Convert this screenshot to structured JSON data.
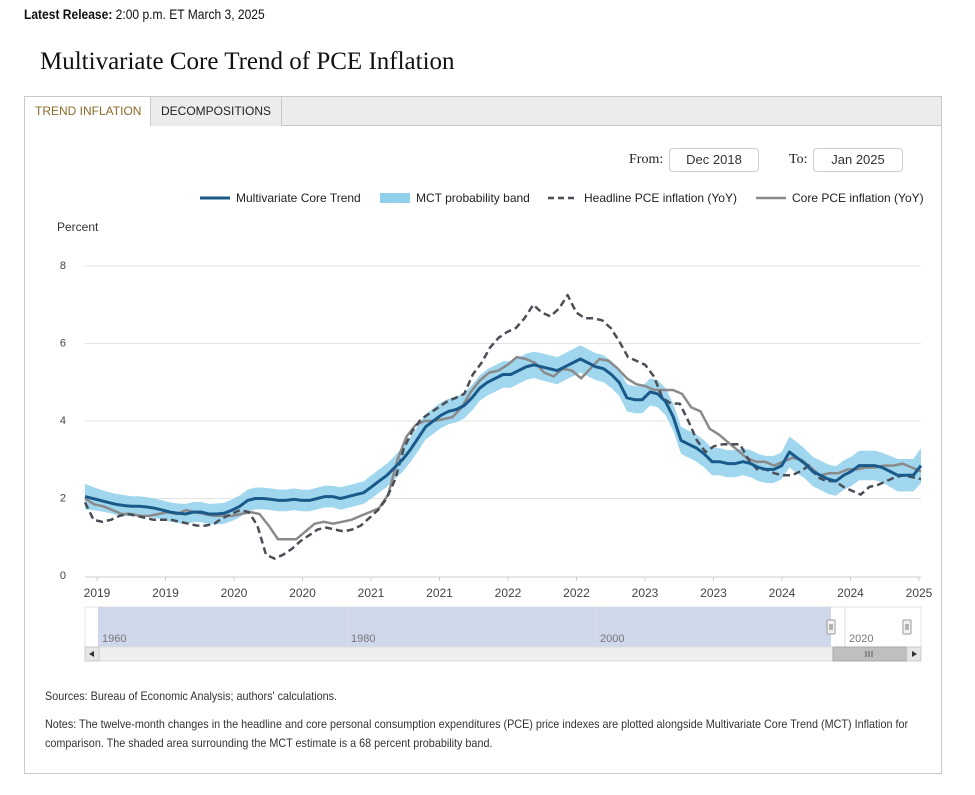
{
  "header": {
    "release_label": "Latest Release:",
    "release_value": "2:00 p.m. ET March 3, 2025",
    "title": "Multivariate Core Trend of PCE Inflation"
  },
  "tabs": [
    {
      "label": "TREND INFLATION",
      "active": true
    },
    {
      "label": "DECOMPOSITIONS",
      "active": false
    }
  ],
  "range": {
    "from_label": "From:",
    "from_value": "Dec 2018",
    "to_label": "To:",
    "to_value": "Jan 2025"
  },
  "colors": {
    "mct": "#1a5a8a",
    "band": "#8fd0ec",
    "headline": "#4a4f57",
    "core": "#8a8a8a",
    "navigator": "#cfd7eb",
    "grid": "#e3e3e3"
  },
  "navigator": {
    "labels": [
      "1960",
      "1980",
      "2000",
      "2020"
    ]
  },
  "footer": {
    "sources": "Sources: Bureau of Economic Analysis; authors' calculations.",
    "notes_line1": "Notes: The twelve-month changes in the headline and core personal consumption expenditures (PCE) price indexes are plotted alongside Multivariate Core Trend (MCT) Inflation for",
    "notes_line2": "comparison. The shaded area surrounding the MCT estimate is a 68 percent probability band."
  },
  "chart_data": {
    "type": "line",
    "title": "",
    "ylabel": "Percent",
    "ylim": [
      0,
      8
    ],
    "yticks": [
      0,
      2,
      4,
      6,
      8
    ],
    "x_start": "Dec 2018",
    "x_end": "Jan 2025",
    "xtick_labels": [
      "2019",
      "2019",
      "2020",
      "2020",
      "2021",
      "2021",
      "2022",
      "2022",
      "2023",
      "2023",
      "2024",
      "2024",
      "2025"
    ],
    "legend": [
      "Multivariate Core Trend",
      "MCT probability band",
      "Headline PCE inflation (YoY)",
      "Core PCE inflation (YoY)"
    ],
    "legend_position": "top",
    "series": [
      {
        "name": "Multivariate Core Trend",
        "style": "solid-thick",
        "values": [
          2.05,
          2.0,
          1.95,
          1.9,
          1.85,
          1.82,
          1.8,
          1.8,
          1.78,
          1.75,
          1.7,
          1.65,
          1.62,
          1.6,
          1.65,
          1.65,
          1.6,
          1.6,
          1.62,
          1.7,
          1.8,
          1.95,
          2.0,
          2.0,
          1.98,
          1.95,
          1.95,
          1.98,
          1.95,
          1.95,
          2.0,
          2.05,
          2.05,
          2.0,
          2.05,
          2.1,
          2.15,
          2.3,
          2.45,
          2.6,
          2.8,
          3.0,
          3.25,
          3.55,
          3.85,
          4.0,
          4.15,
          4.25,
          4.3,
          4.4,
          4.6,
          4.85,
          5.0,
          5.1,
          5.2,
          5.2,
          5.3,
          5.4,
          5.45,
          5.4,
          5.35,
          5.3,
          5.4,
          5.5,
          5.6,
          5.5,
          5.4,
          5.35,
          5.2,
          5.0,
          4.6,
          4.55,
          4.55,
          4.75,
          4.7,
          4.5,
          4.1,
          3.5,
          3.4,
          3.3,
          3.15,
          2.95,
          2.95,
          2.9,
          2.9,
          2.95,
          2.9,
          2.8,
          2.75,
          2.75,
          2.85,
          3.2,
          3.05,
          2.9,
          2.7,
          2.6,
          2.5,
          2.45,
          2.6,
          2.7,
          2.85,
          2.85,
          2.85,
          2.8,
          2.7,
          2.6,
          2.6,
          2.6,
          2.85
        ]
      },
      {
        "name": "Headline PCE inflation (YoY)",
        "style": "dashed",
        "values": [
          1.9,
          1.45,
          1.4,
          1.45,
          1.55,
          1.6,
          1.55,
          1.5,
          1.45,
          1.45,
          1.45,
          1.4,
          1.35,
          1.3,
          1.3,
          1.35,
          1.5,
          1.6,
          1.7,
          1.65,
          1.3,
          0.55,
          0.45,
          0.55,
          0.7,
          0.9,
          1.05,
          1.2,
          1.25,
          1.2,
          1.15,
          1.2,
          1.3,
          1.5,
          1.7,
          2.0,
          2.5,
          3.3,
          3.75,
          4.05,
          4.2,
          4.35,
          4.5,
          4.6,
          4.7,
          5.2,
          5.5,
          5.9,
          6.15,
          6.3,
          6.4,
          6.65,
          7.0,
          6.8,
          6.7,
          6.9,
          7.25,
          6.8,
          6.65,
          6.65,
          6.6,
          6.4,
          6.05,
          5.65,
          5.55,
          5.45,
          5.15,
          4.6,
          4.45,
          4.45,
          4.0,
          3.5,
          3.2,
          3.35,
          3.4,
          3.4,
          3.4,
          3.0,
          2.75,
          2.75,
          2.65,
          2.6,
          2.6,
          2.7,
          2.85,
          2.55,
          2.45,
          2.45,
          2.3,
          2.2,
          2.1,
          2.3,
          2.35,
          2.45,
          2.55,
          2.6,
          2.55,
          2.5
        ]
      },
      {
        "name": "Core PCE inflation (YoY)",
        "style": "solid",
        "values": [
          2.0,
          1.85,
          1.8,
          1.7,
          1.6,
          1.6,
          1.55,
          1.55,
          1.6,
          1.65,
          1.6,
          1.7,
          1.65,
          1.6,
          1.55,
          1.55,
          1.55,
          1.6,
          1.65,
          1.6,
          1.3,
          0.95,
          0.95,
          0.95,
          1.15,
          1.35,
          1.4,
          1.35,
          1.4,
          1.45,
          1.55,
          1.65,
          1.75,
          2.1,
          3.0,
          3.6,
          3.9,
          4.0,
          4.0,
          4.05,
          4.1,
          4.35,
          4.75,
          5.05,
          5.25,
          5.3,
          5.45,
          5.65,
          5.6,
          5.5,
          5.25,
          5.15,
          5.35,
          5.3,
          5.1,
          5.35,
          5.6,
          5.55,
          5.35,
          5.1,
          4.95,
          4.9,
          4.8,
          4.8,
          4.8,
          4.7,
          4.35,
          4.25,
          3.8,
          3.65,
          3.45,
          3.25,
          3.05,
          2.95,
          2.95,
          2.85,
          2.95,
          3.05,
          3.0,
          2.8,
          2.6,
          2.65,
          2.65,
          2.75,
          2.75,
          2.8,
          2.8,
          2.85,
          2.85,
          2.9,
          2.8,
          2.7
        ]
      }
    ],
    "band": {
      "name": "MCT probability band",
      "half_width": [
        0.33,
        0.3,
        0.28,
        0.27,
        0.27,
        0.27,
        0.26,
        0.26,
        0.25,
        0.25,
        0.25,
        0.25,
        0.25,
        0.26,
        0.26,
        0.26,
        0.26,
        0.27,
        0.27,
        0.28,
        0.28,
        0.28,
        0.28,
        0.28,
        0.28,
        0.28,
        0.28,
        0.28,
        0.28,
        0.28,
        0.28,
        0.28,
        0.28,
        0.29,
        0.29,
        0.29,
        0.29,
        0.3,
        0.3,
        0.3,
        0.3,
        0.32,
        0.32,
        0.33,
        0.33,
        0.33,
        0.33,
        0.33,
        0.33,
        0.33,
        0.33,
        0.33,
        0.34,
        0.34,
        0.34,
        0.34,
        0.34,
        0.34,
        0.34,
        0.35,
        0.35,
        0.35,
        0.35,
        0.35,
        0.35,
        0.35,
        0.35,
        0.35,
        0.35,
        0.35,
        0.35,
        0.35,
        0.35,
        0.35,
        0.35,
        0.35,
        0.35,
        0.35,
        0.35,
        0.35,
        0.35,
        0.35,
        0.35,
        0.35,
        0.35,
        0.35,
        0.35,
        0.35,
        0.35,
        0.35,
        0.35,
        0.4,
        0.4,
        0.38,
        0.38,
        0.38,
        0.38,
        0.38,
        0.38,
        0.38,
        0.38,
        0.38,
        0.38,
        0.38,
        0.4,
        0.42,
        0.42,
        0.42,
        0.45
      ]
    }
  }
}
